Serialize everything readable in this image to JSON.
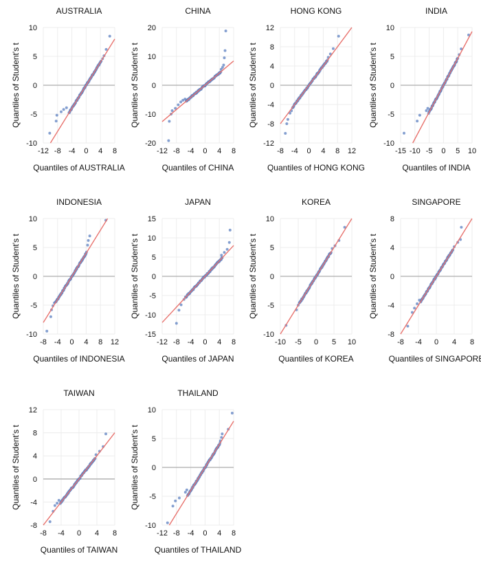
{
  "colors": {
    "points": "#5b7fc0",
    "reference_line": "#e8726d",
    "gridline": "#ececec",
    "zero_line": "#b8b8b8",
    "text": "#111111"
  },
  "chart_data": [
    {
      "type": "scatter",
      "title": "AUSTRALIA",
      "xlabel": "Quantiles of AUSTRALIA",
      "ylabel": "Quantiles of Student's t",
      "xlim": [
        -12,
        8
      ],
      "ylim": [
        -10,
        10
      ],
      "xticks": [
        -12,
        -8,
        -4,
        0,
        4,
        8
      ],
      "yticks": [
        -10,
        -5,
        0,
        5,
        10
      ],
      "line": {
        "slope": 1.0,
        "intercept": 0
      },
      "tail_points": [
        [
          -10.2,
          -8.3
        ],
        [
          -8.4,
          -6.2
        ],
        [
          -8.2,
          -5.2
        ],
        [
          -7.0,
          -4.6
        ],
        [
          -6.3,
          -4.2
        ],
        [
          -5.5,
          -3.9
        ],
        [
          4.6,
          4.6
        ],
        [
          5.0,
          5.1
        ],
        [
          5.6,
          6.2
        ],
        [
          6.6,
          8.5
        ]
      ],
      "center_range": [
        -4.8,
        4.2
      ]
    },
    {
      "type": "scatter",
      "title": "CHINA",
      "xlabel": "Quantiles of CHINA",
      "ylabel": "Quantiles of Student's t",
      "xlim": [
        -12,
        8
      ],
      "ylim": [
        -20,
        20
      ],
      "xticks": [
        -12,
        -8,
        -4,
        0,
        4,
        8
      ],
      "yticks": [
        -20,
        -10,
        0,
        10,
        20
      ],
      "line": {
        "slope": 1.05,
        "intercept": 0
      },
      "tail_points": [
        [
          -10.2,
          -19.2
        ],
        [
          -10.0,
          -12.5
        ],
        [
          -9.5,
          -10.0
        ],
        [
          -9.2,
          -8.8
        ],
        [
          -8.3,
          -8.0
        ],
        [
          -7.5,
          -6.8
        ],
        [
          -6.8,
          -5.8
        ],
        [
          -6.2,
          -5.2
        ],
        [
          -5.6,
          -4.8
        ],
        [
          4.5,
          5.5
        ],
        [
          4.9,
          6.2
        ],
        [
          5.2,
          7.0
        ],
        [
          5.4,
          9.5
        ],
        [
          5.6,
          12.0
        ],
        [
          5.8,
          18.8
        ]
      ],
      "center_range": [
        -5.3,
        4.4
      ]
    },
    {
      "type": "scatter",
      "title": "HONG KONG",
      "xlabel": "Quantiles of HONG KONG",
      "ylabel": "Quantiles of Student's t",
      "xlim": [
        -8,
        12
      ],
      "ylim": [
        -12,
        12
      ],
      "xticks": [
        -8,
        -4,
        0,
        4,
        8,
        12
      ],
      "yticks": [
        -12,
        -8,
        -4,
        0,
        4,
        8,
        12
      ],
      "line": {
        "slope": 1.0,
        "intercept": 0
      },
      "tail_points": [
        [
          -6.6,
          -10.0
        ],
        [
          -6.2,
          -8.0
        ],
        [
          -5.9,
          -7.1
        ],
        [
          -5.3,
          -5.8
        ],
        [
          -4.9,
          -5.3
        ],
        [
          5.4,
          5.8
        ],
        [
          6.0,
          6.5
        ],
        [
          6.8,
          7.6
        ],
        [
          8.3,
          10.2
        ]
      ],
      "center_range": [
        -4.6,
        5.2
      ]
    },
    {
      "type": "scatter",
      "title": "INDIA",
      "xlabel": "Quantiles of INDIA",
      "ylabel": "Quantiles of Student's t",
      "xlim": [
        -15,
        10
      ],
      "ylim": [
        -10,
        10
      ],
      "xticks": [
        -15,
        -10,
        -5,
        0,
        5,
        10
      ],
      "yticks": [
        -10,
        -5,
        0,
        5,
        10
      ],
      "line": {
        "slope": 0.93,
        "intercept": 0
      },
      "tail_points": [
        [
          -13.8,
          -8.3
        ],
        [
          -9.2,
          -6.2
        ],
        [
          -8.3,
          -5.2
        ],
        [
          -6.0,
          -4.4
        ],
        [
          -5.5,
          -4.0
        ],
        [
          5.5,
          5.3
        ],
        [
          6.2,
          6.3
        ],
        [
          8.8,
          8.7
        ]
      ],
      "center_range": [
        -5.2,
        5.0
      ]
    },
    {
      "type": "scatter",
      "title": "INDONESIA",
      "xlabel": "Quantiles of INDONESIA",
      "ylabel": "Quantiles of Student's t",
      "xlim": [
        -8,
        12
      ],
      "ylim": [
        -10,
        10
      ],
      "xticks": [
        -8,
        -4,
        0,
        4,
        8,
        12
      ],
      "yticks": [
        -10,
        -5,
        0,
        5,
        10
      ],
      "line": {
        "slope": 1.0,
        "intercept": 0
      },
      "tail_points": [
        [
          -7.0,
          -9.5
        ],
        [
          -5.9,
          -7.0
        ],
        [
          -5.7,
          -5.8
        ],
        [
          -5.3,
          -5.1
        ],
        [
          -4.9,
          -4.6
        ],
        [
          4.4,
          5.4
        ],
        [
          4.6,
          6.2
        ],
        [
          5.0,
          7.0
        ],
        [
          9.5,
          9.7
        ]
      ],
      "center_range": [
        -4.6,
        4.1
      ]
    },
    {
      "type": "scatter",
      "title": "JAPAN",
      "xlabel": "Quantiles of JAPAN",
      "ylabel": "Quantiles of Student's t",
      "xlim": [
        -12,
        8
      ],
      "ylim": [
        -15,
        15
      ],
      "xticks": [
        -12,
        -8,
        -4,
        0,
        4,
        8
      ],
      "yticks": [
        -15,
        -10,
        -5,
        0,
        5,
        10,
        15
      ],
      "line": {
        "slope": 1.0,
        "intercept": 0
      },
      "tail_points": [
        [
          -8.0,
          -12.2
        ],
        [
          -7.3,
          -8.8
        ],
        [
          -6.7,
          -7.4
        ],
        [
          -5.9,
          -6.0
        ],
        [
          4.6,
          5.5
        ],
        [
          5.4,
          6.2
        ],
        [
          6.2,
          7.0
        ],
        [
          6.8,
          8.8
        ],
        [
          7.0,
          12.0
        ]
      ],
      "center_range": [
        -5.5,
        4.8
      ]
    },
    {
      "type": "scatter",
      "title": "KOREA",
      "xlabel": "Quantiles of KOREA",
      "ylabel": "Quantiles of Student's t",
      "xlim": [
        -10,
        10
      ],
      "ylim": [
        -10,
        10
      ],
      "xticks": [
        -10,
        -5,
        0,
        5,
        10
      ],
      "yticks": [
        -10,
        -5,
        0,
        5,
        10
      ],
      "line": {
        "slope": 1.0,
        "intercept": 0
      },
      "tail_points": [
        [
          -8.4,
          -8.5
        ],
        [
          -5.5,
          -5.8
        ],
        [
          -5.0,
          -5.0
        ],
        [
          4.5,
          4.8
        ],
        [
          5.3,
          5.3
        ],
        [
          6.4,
          6.2
        ],
        [
          8.0,
          8.5
        ]
      ],
      "center_range": [
        -4.7,
        4.2
      ]
    },
    {
      "type": "scatter",
      "title": "SINGAPORE",
      "xlabel": "Quantiles of SINGAPORE",
      "ylabel": "Quantiles of Student's t",
      "xlim": [
        -8,
        8
      ],
      "ylim": [
        -8,
        8
      ],
      "xticks": [
        -8,
        -4,
        0,
        4,
        8
      ],
      "yticks": [
        -8,
        -4,
        0,
        4,
        8
      ],
      "line": {
        "slope": 1.0,
        "intercept": 0
      },
      "tail_points": [
        [
          -6.4,
          -6.9
        ],
        [
          -5.4,
          -5.0
        ],
        [
          -4.9,
          -4.4
        ],
        [
          -4.3,
          -3.8
        ],
        [
          -3.8,
          -3.3
        ],
        [
          4.0,
          4.1
        ],
        [
          4.8,
          4.7
        ],
        [
          5.4,
          5.1
        ],
        [
          5.6,
          6.8
        ]
      ],
      "center_range": [
        -3.5,
        3.7
      ]
    },
    {
      "type": "scatter",
      "title": "TAIWAN",
      "xlabel": "Quantiles of TAIWAN",
      "ylabel": "Quantiles of Student's t",
      "xlim": [
        -8,
        8
      ],
      "ylim": [
        -8,
        12
      ],
      "xticks": [
        -8,
        -4,
        0,
        4,
        8
      ],
      "yticks": [
        -8,
        -4,
        0,
        4,
        8,
        12
      ],
      "line": {
        "slope": 1.0,
        "intercept": 0
      },
      "tail_points": [
        [
          -6.5,
          -7.4
        ],
        [
          -5.8,
          -5.6
        ],
        [
          -5.4,
          -4.6
        ],
        [
          -4.9,
          -4.2
        ],
        [
          -4.5,
          -3.7
        ],
        [
          3.8,
          4.2
        ],
        [
          4.6,
          4.8
        ],
        [
          5.4,
          5.6
        ],
        [
          6.0,
          7.8
        ]
      ],
      "center_range": [
        -4.2,
        3.6
      ]
    },
    {
      "type": "scatter",
      "title": "THAILAND",
      "xlabel": "Quantiles of THAILAND",
      "ylabel": "Quantiles of Student's t",
      "xlim": [
        -12,
        8
      ],
      "ylim": [
        -10,
        10
      ],
      "xticks": [
        -12,
        -8,
        -4,
        0,
        4,
        8
      ],
      "yticks": [
        -10,
        -5,
        0,
        5,
        10
      ],
      "line": {
        "slope": 1.0,
        "intercept": 0
      },
      "tail_points": [
        [
          -10.5,
          -9.6
        ],
        [
          -9.0,
          -6.7
        ],
        [
          -8.3,
          -5.8
        ],
        [
          -7.2,
          -5.3
        ],
        [
          -5.5,
          -4.3
        ],
        [
          -5.1,
          -3.9
        ],
        [
          4.3,
          4.6
        ],
        [
          4.6,
          5.2
        ],
        [
          4.8,
          5.8
        ],
        [
          6.5,
          6.6
        ],
        [
          7.6,
          9.4
        ]
      ],
      "center_range": [
        -4.9,
        4.2
      ]
    }
  ]
}
